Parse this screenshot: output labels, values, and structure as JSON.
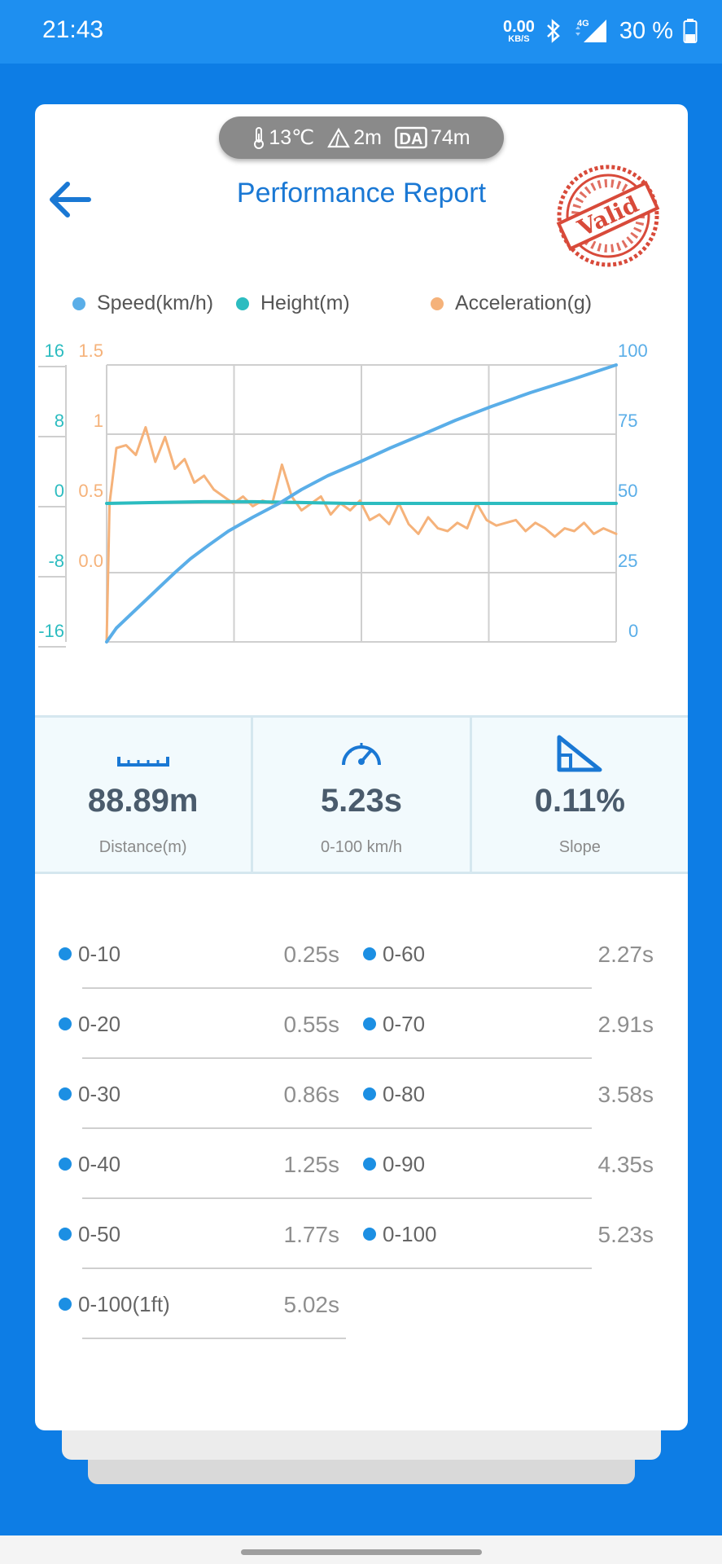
{
  "status_bar": {
    "time": "21:43",
    "net_speed_value": "0.00",
    "net_speed_unit": "KB/S",
    "network_type": "4G",
    "battery_percent": "30 %",
    "icons": [
      "bluetooth-icon",
      "signal-icon",
      "battery-icon"
    ]
  },
  "header": {
    "title": "Performance Report",
    "stamp_text": "Valid",
    "weather": {
      "temperature": "13℃",
      "altitude": "2m",
      "da_badge": "DA",
      "density_altitude": "74m"
    }
  },
  "chart_data": {
    "type": "line",
    "legend": [
      {
        "name": "Speed(km/h)",
        "color": "#5aaee8"
      },
      {
        "name": "Height(m)",
        "color": "#2cbcc0"
      },
      {
        "name": "Acceleration(g)",
        "color": "#f5b27a"
      }
    ],
    "axes": {
      "height_ticks": [
        "16",
        "8",
        "0",
        "-8",
        "-16"
      ],
      "height_range": [
        -16,
        16
      ],
      "accel_ticks": [
        "1.5",
        "1",
        "0.5",
        "0.0"
      ],
      "accel_range": [
        -0.5,
        1.5
      ],
      "speed_ticks": [
        "100",
        "75",
        "50",
        "25",
        "0"
      ],
      "speed_range": [
        0,
        100
      ],
      "time_range": [
        0,
        5.23
      ]
    },
    "series": [
      {
        "name": "Speed(km/h)",
        "x": [
          0,
          0.1,
          0.25,
          0.4,
          0.55,
          0.7,
          0.86,
          1.05,
          1.25,
          1.5,
          1.77,
          2.0,
          2.27,
          2.6,
          2.91,
          3.25,
          3.58,
          3.95,
          4.35,
          4.8,
          5.23
        ],
        "values": [
          0,
          5,
          10,
          15,
          20,
          25,
          30,
          35,
          40,
          45,
          50,
          55,
          60,
          65,
          70,
          75,
          80,
          85,
          90,
          95,
          100
        ]
      },
      {
        "name": "Height(m)",
        "x": [
          0,
          0.5,
          1.0,
          1.5,
          2.0,
          2.5,
          3.0,
          3.5,
          4.0,
          4.5,
          5.23
        ],
        "values": [
          0,
          0.1,
          0.2,
          0.2,
          0.1,
          0,
          0,
          0,
          0,
          0,
          0
        ]
      },
      {
        "name": "Acceleration(g)",
        "x": [
          0,
          0.03,
          0.1,
          0.2,
          0.3,
          0.4,
          0.5,
          0.6,
          0.7,
          0.8,
          0.9,
          1.0,
          1.1,
          1.2,
          1.3,
          1.4,
          1.5,
          1.6,
          1.7,
          1.8,
          1.9,
          2.0,
          2.1,
          2.2,
          2.3,
          2.4,
          2.5,
          2.6,
          2.7,
          2.8,
          2.9,
          3.0,
          3.1,
          3.2,
          3.3,
          3.4,
          3.5,
          3.6,
          3.7,
          3.8,
          3.9,
          4.0,
          4.1,
          4.2,
          4.3,
          4.4,
          4.5,
          4.6,
          4.7,
          4.8,
          4.9,
          5.0,
          5.1,
          5.23
        ],
        "values": [
          -0.5,
          0.5,
          0.9,
          0.92,
          0.85,
          1.05,
          0.8,
          0.98,
          0.75,
          0.82,
          0.65,
          0.7,
          0.6,
          0.55,
          0.5,
          0.55,
          0.48,
          0.52,
          0.5,
          0.78,
          0.55,
          0.45,
          0.5,
          0.55,
          0.42,
          0.5,
          0.45,
          0.52,
          0.38,
          0.42,
          0.35,
          0.5,
          0.35,
          0.28,
          0.4,
          0.32,
          0.3,
          0.36,
          0.32,
          0.5,
          0.38,
          0.34,
          0.36,
          0.38,
          0.3,
          0.36,
          0.32,
          0.26,
          0.32,
          0.3,
          0.36,
          0.28,
          0.32,
          0.28
        ]
      }
    ]
  },
  "stats": [
    {
      "icon": "ruler-icon",
      "value": "88.89m",
      "label": "Distance(m)"
    },
    {
      "icon": "speedometer-icon",
      "value": "5.23s",
      "label": "0-100 km/h"
    },
    {
      "icon": "slope-icon",
      "value": "0.11%",
      "label": "Slope"
    }
  ],
  "splits": {
    "left": [
      {
        "label": "0-10",
        "value": "0.25s"
      },
      {
        "label": "0-20",
        "value": "0.55s"
      },
      {
        "label": "0-30",
        "value": "0.86s"
      },
      {
        "label": "0-40",
        "value": "1.25s"
      },
      {
        "label": "0-50",
        "value": "1.77s"
      },
      {
        "label": "0-100(1ft)",
        "value": "5.02s"
      }
    ],
    "right": [
      {
        "label": "0-60",
        "value": "2.27s"
      },
      {
        "label": "0-70",
        "value": "2.91s"
      },
      {
        "label": "0-80",
        "value": "3.58s"
      },
      {
        "label": "0-90",
        "value": "4.35s"
      },
      {
        "label": "0-100",
        "value": "5.23s"
      }
    ]
  }
}
